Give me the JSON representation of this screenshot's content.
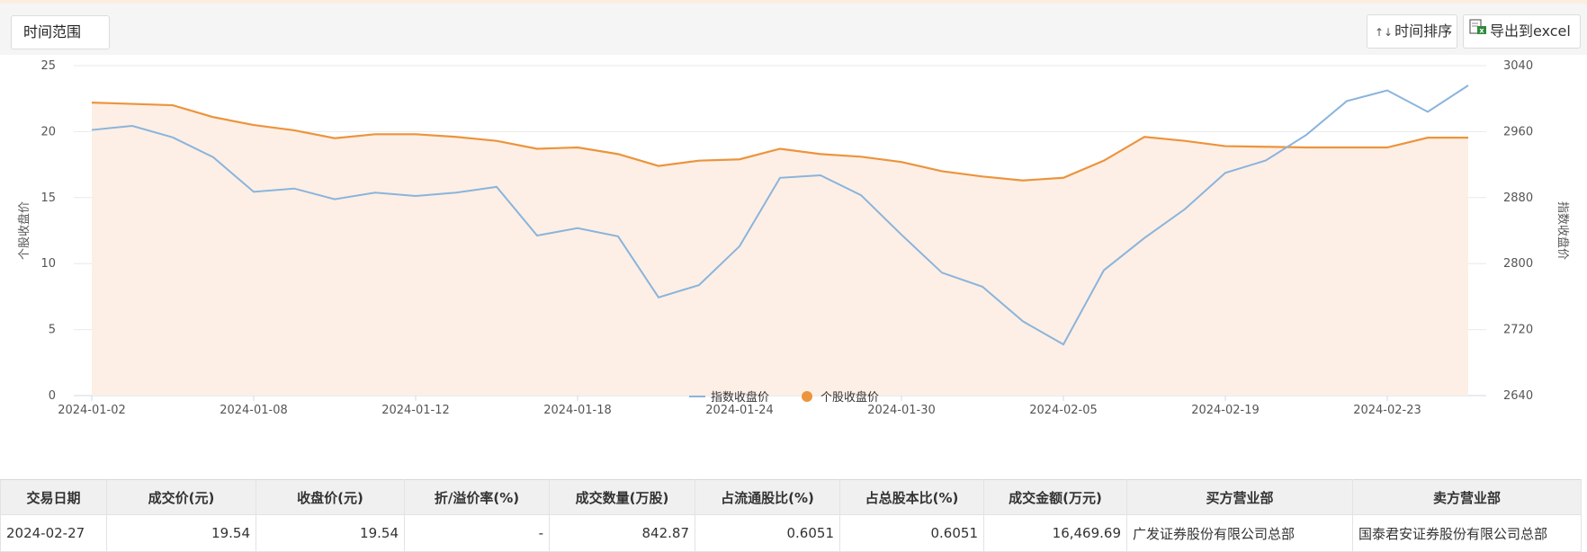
{
  "toolbar": {
    "range_label": "时间范围",
    "sort_glyph": "↑↓",
    "sort_label": "时间排序",
    "export_label": "导出到excel"
  },
  "colors": {
    "index_line": "#8ab4dc",
    "stock_line": "#ec943d",
    "stock_fill": "#fdefe5",
    "grid": "#e9e9e9"
  },
  "chart_data": {
    "type": "line",
    "x": [
      "2024-01-02",
      "2024-01-03",
      "2024-01-04",
      "2024-01-05",
      "2024-01-08",
      "2024-01-09",
      "2024-01-10",
      "2024-01-11",
      "2024-01-12",
      "2024-01-15",
      "2024-01-16",
      "2024-01-17",
      "2024-01-18",
      "2024-01-19",
      "2024-01-22",
      "2024-01-23",
      "2024-01-24",
      "2024-01-25",
      "2024-01-26",
      "2024-01-29",
      "2024-01-30",
      "2024-01-31",
      "2024-02-01",
      "2024-02-02",
      "2024-02-05",
      "2024-02-06",
      "2024-02-07",
      "2024-02-08",
      "2024-02-19",
      "2024-02-20",
      "2024-02-21",
      "2024-02-22",
      "2024-02-23",
      "2024-02-26",
      "2024-02-27"
    ],
    "x_tick_labels": [
      "2024-01-02",
      "2024-01-08",
      "2024-01-12",
      "2024-01-18",
      "2024-01-24",
      "2024-01-30",
      "2024-02-05",
      "2024-02-19",
      "2024-02-23"
    ],
    "x_tick_indices": [
      0,
      4,
      8,
      12,
      16,
      20,
      24,
      28,
      32
    ],
    "y_left": {
      "label": "个股收盘价",
      "min": 0,
      "max": 25,
      "ticks": [
        "0",
        "5",
        "10",
        "15",
        "20",
        "25"
      ]
    },
    "y_right": {
      "label": "指数收盘价",
      "min": 2640,
      "max": 3040,
      "ticks": [
        "2640",
        "2720",
        "2800",
        "2880",
        "2960",
        "3040"
      ]
    },
    "series": [
      {
        "name": "指数收盘价",
        "axis": "right",
        "values": [
          2962,
          2967,
          2953,
          2929,
          2887,
          2891,
          2878,
          2886,
          2882,
          2886,
          2893,
          2834,
          2843,
          2833,
          2759,
          2774,
          2821,
          2904,
          2907,
          2883,
          2835,
          2789,
          2772,
          2730,
          2702,
          2792,
          2831,
          2866,
          2910,
          2925,
          2956,
          2997,
          3010,
          2984,
          3016
        ]
      },
      {
        "name": "个股收盘价",
        "axis": "left",
        "values": [
          22.2,
          22.1,
          22.0,
          21.1,
          20.5,
          20.1,
          19.5,
          19.8,
          19.8,
          19.6,
          19.3,
          18.7,
          18.8,
          18.3,
          17.4,
          17.8,
          17.9,
          18.7,
          18.3,
          18.1,
          17.7,
          17.0,
          16.6,
          16.3,
          16.5,
          17.8,
          19.6,
          19.3,
          18.9,
          18.85,
          18.8,
          18.8,
          18.8,
          19.54,
          19.54
        ]
      }
    ],
    "legend": [
      "指数收盘价",
      "个股收盘价"
    ],
    "legend_position": "bottom-center",
    "grid": true
  },
  "table": {
    "headers": [
      "交易日期",
      "成交价(元)",
      "收盘价(元)",
      "折/溢价率(%)",
      "成交数量(万股)",
      "占流通股比(%)",
      "占总股本比(%)",
      "成交金额(万元)",
      "买方营业部",
      "卖方营业部"
    ],
    "rows": [
      [
        "2024-02-27",
        "19.54",
        "19.54",
        "-",
        "842.87",
        "0.6051",
        "0.6051",
        "16,469.69",
        "广发证券股份有限公司总部",
        "国泰君安证券股份有限公司总部"
      ]
    ]
  }
}
